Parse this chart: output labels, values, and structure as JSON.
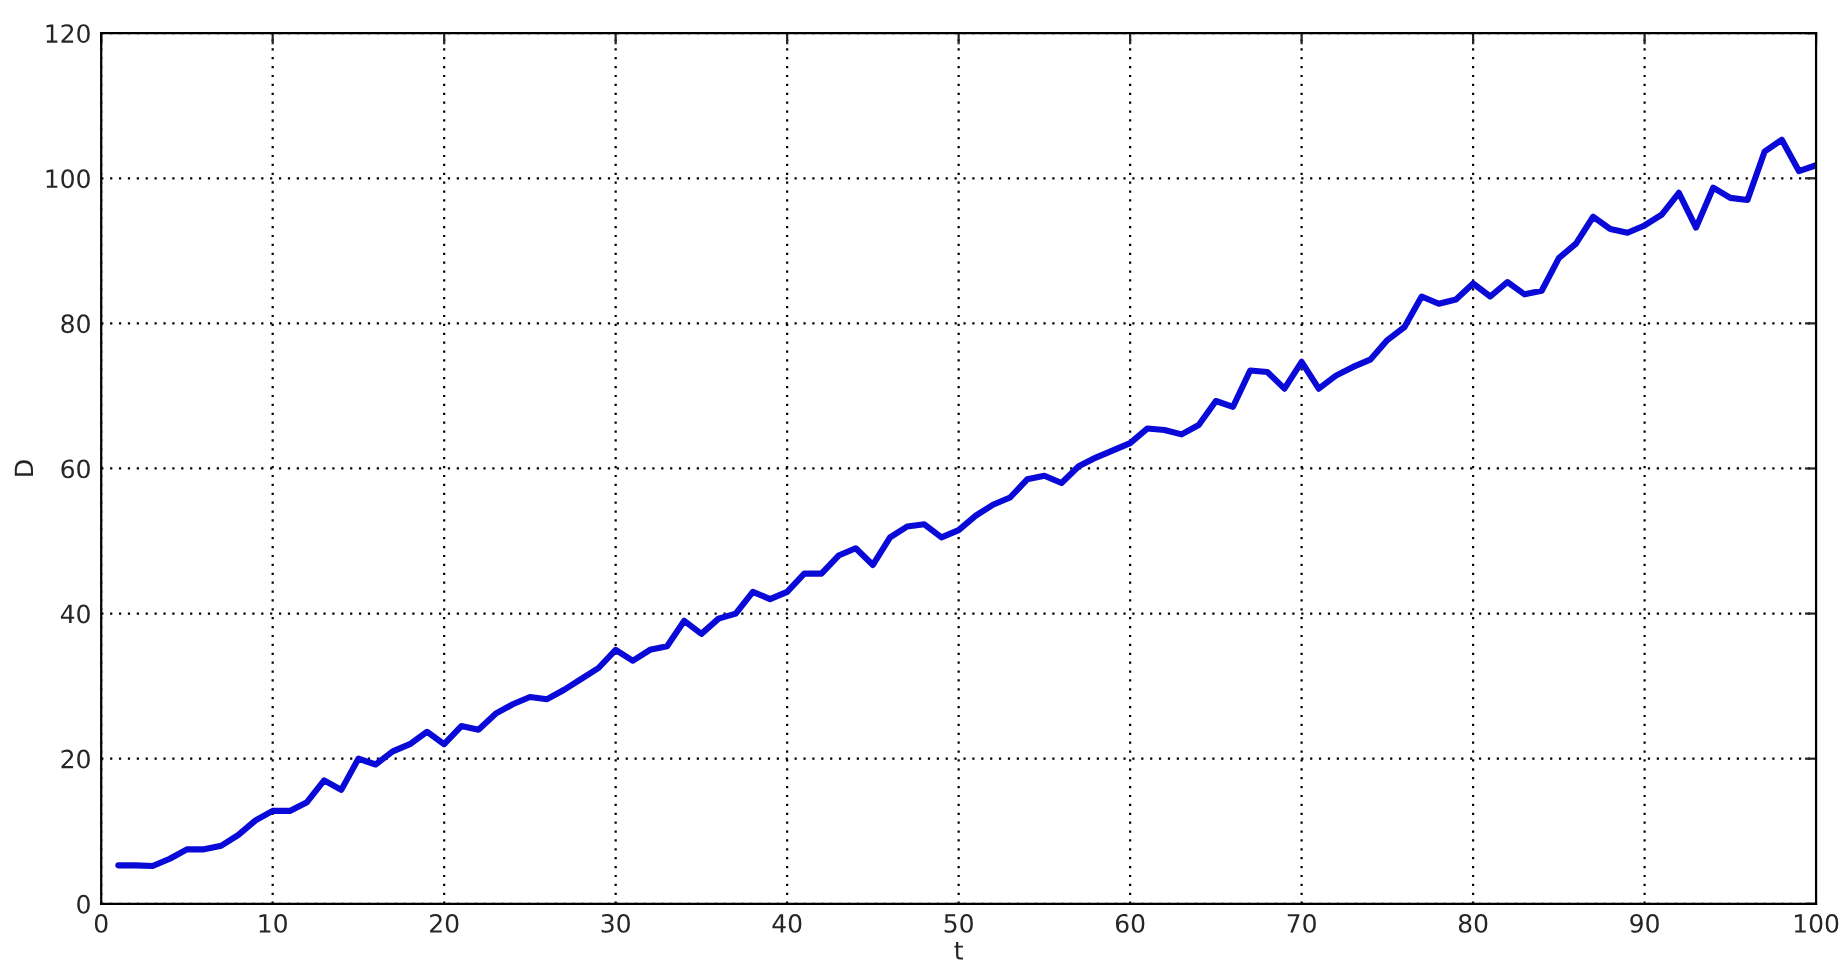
{
  "chart_data": {
    "type": "line",
    "xlabel": "t",
    "ylabel": "D",
    "x": [
      1,
      2,
      3,
      4,
      5,
      6,
      7,
      8,
      9,
      10,
      11,
      12,
      13,
      14,
      15,
      16,
      17,
      18,
      19,
      20,
      21,
      22,
      23,
      24,
      25,
      26,
      27,
      28,
      29,
      30,
      31,
      32,
      33,
      34,
      35,
      36,
      37,
      38,
      39,
      40,
      41,
      42,
      43,
      44,
      45,
      46,
      47,
      48,
      49,
      50,
      51,
      52,
      53,
      54,
      55,
      56,
      57,
      58,
      59,
      60,
      61,
      62,
      63,
      64,
      65,
      66,
      67,
      68,
      69,
      70,
      71,
      72,
      73,
      74,
      75,
      76,
      77,
      78,
      79,
      80,
      81,
      82,
      83,
      84,
      85,
      86,
      87,
      88,
      89,
      90,
      91,
      92,
      93,
      94,
      95,
      96,
      97,
      98,
      99,
      100
    ],
    "series": [
      {
        "color": "#0a0ad8",
        "values": [
          5.3,
          5.3,
          5.2,
          6.2,
          7.5,
          7.5,
          8,
          9.5,
          11.5,
          12.8,
          12.8,
          14,
          17,
          15.7,
          20,
          19.2,
          21,
          22,
          23.7,
          22,
          24.5,
          24,
          26.2,
          27.5,
          28.5,
          28.2,
          29.5,
          31,
          32.5,
          35,
          33.5,
          35,
          35.5,
          39,
          37.2,
          39.3,
          40,
          43,
          42,
          43,
          45.5,
          45.5,
          48,
          49,
          46.7,
          50.5,
          52,
          52.3,
          50.5,
          51.5,
          53.5,
          55,
          56,
          58.5,
          59,
          58,
          60.3,
          61.5,
          62.5,
          63.5,
          65.5,
          65.3,
          64.7,
          66,
          69.3,
          68.5,
          73.5,
          73.3,
          71,
          74.7,
          71,
          72.8,
          74,
          75,
          77.7,
          79.5,
          83.7,
          82.7,
          83.3,
          85.5,
          83.7,
          85.7,
          84,
          84.5,
          89,
          91,
          94.7,
          93,
          92.5,
          93.5,
          95,
          98,
          93.2,
          98.7,
          97.3,
          97,
          103.7,
          105.3,
          101,
          101.8
        ]
      }
    ],
    "xlim": [
      0,
      100
    ],
    "ylim": [
      0,
      120
    ],
    "xticks": [
      0,
      10,
      20,
      30,
      40,
      50,
      60,
      70,
      80,
      90,
      100
    ],
    "yticks": [
      0,
      20,
      40,
      60,
      80,
      100,
      120
    ],
    "grid": true,
    "line_style": "solid",
    "marker": "none"
  }
}
